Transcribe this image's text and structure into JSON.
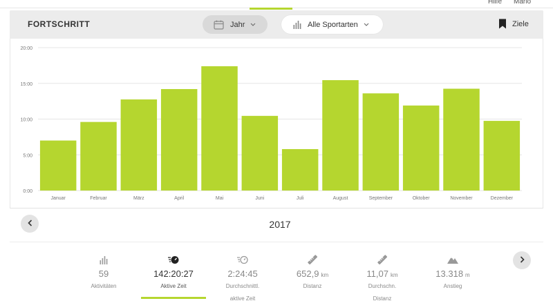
{
  "topbar": {
    "help_label": "Hilfe",
    "user_label": "Mario"
  },
  "header": {
    "title": "FORTSCHRITT",
    "period_label": "Jahr",
    "sport_label": "Alle Sportarten",
    "goals_label": "Ziele"
  },
  "colors": {
    "accent": "#b5d62f",
    "bar": "#b5d62f",
    "grid": "#e6e6e6"
  },
  "chart_data": {
    "type": "bar",
    "categories": [
      "Januar",
      "Februar",
      "März",
      "April",
      "Mai",
      "Juni",
      "Juli",
      "August",
      "September",
      "Oktober",
      "November",
      "Dezember"
    ],
    "values": [
      7.0,
      9.6,
      12.75,
      14.2,
      17.4,
      10.45,
      5.8,
      15.45,
      13.6,
      11.9,
      14.25,
      9.75
    ],
    "y_ticks": [
      "0:00",
      "5:00",
      "10:00",
      "15:00",
      "20:00"
    ],
    "y_tick_values": [
      0,
      5,
      10,
      15,
      20
    ],
    "ylim": [
      0,
      20
    ],
    "grid": true,
    "title": "",
    "xlabel": "",
    "ylabel": ""
  },
  "nav": {
    "year": "2017"
  },
  "stats": [
    {
      "value": "59",
      "unit": "",
      "label_lines": [
        "Aktivitäten"
      ],
      "icon": "bar-chart-icon",
      "active": false
    },
    {
      "value": "142:20:27",
      "unit": "",
      "label_lines": [
        "Aktive Zeit"
      ],
      "icon": "stopwatch-icon",
      "active": true
    },
    {
      "value": "2:24:45",
      "unit": "",
      "label_lines": [
        "Durchschnittl.",
        "aktive Zeit"
      ],
      "icon": "average-stopwatch-icon",
      "active": false
    },
    {
      "value": "652,9",
      "unit": "km",
      "label_lines": [
        "Distanz"
      ],
      "icon": "ruler-icon",
      "active": false
    },
    {
      "value": "11,07",
      "unit": "km",
      "label_lines": [
        "Durchschn.",
        "Distanz"
      ],
      "icon": "ruler-icon",
      "active": false
    },
    {
      "value": "13.318",
      "unit": "m",
      "label_lines": [
        "Anstieg"
      ],
      "icon": "mountain-icon",
      "active": false
    }
  ]
}
